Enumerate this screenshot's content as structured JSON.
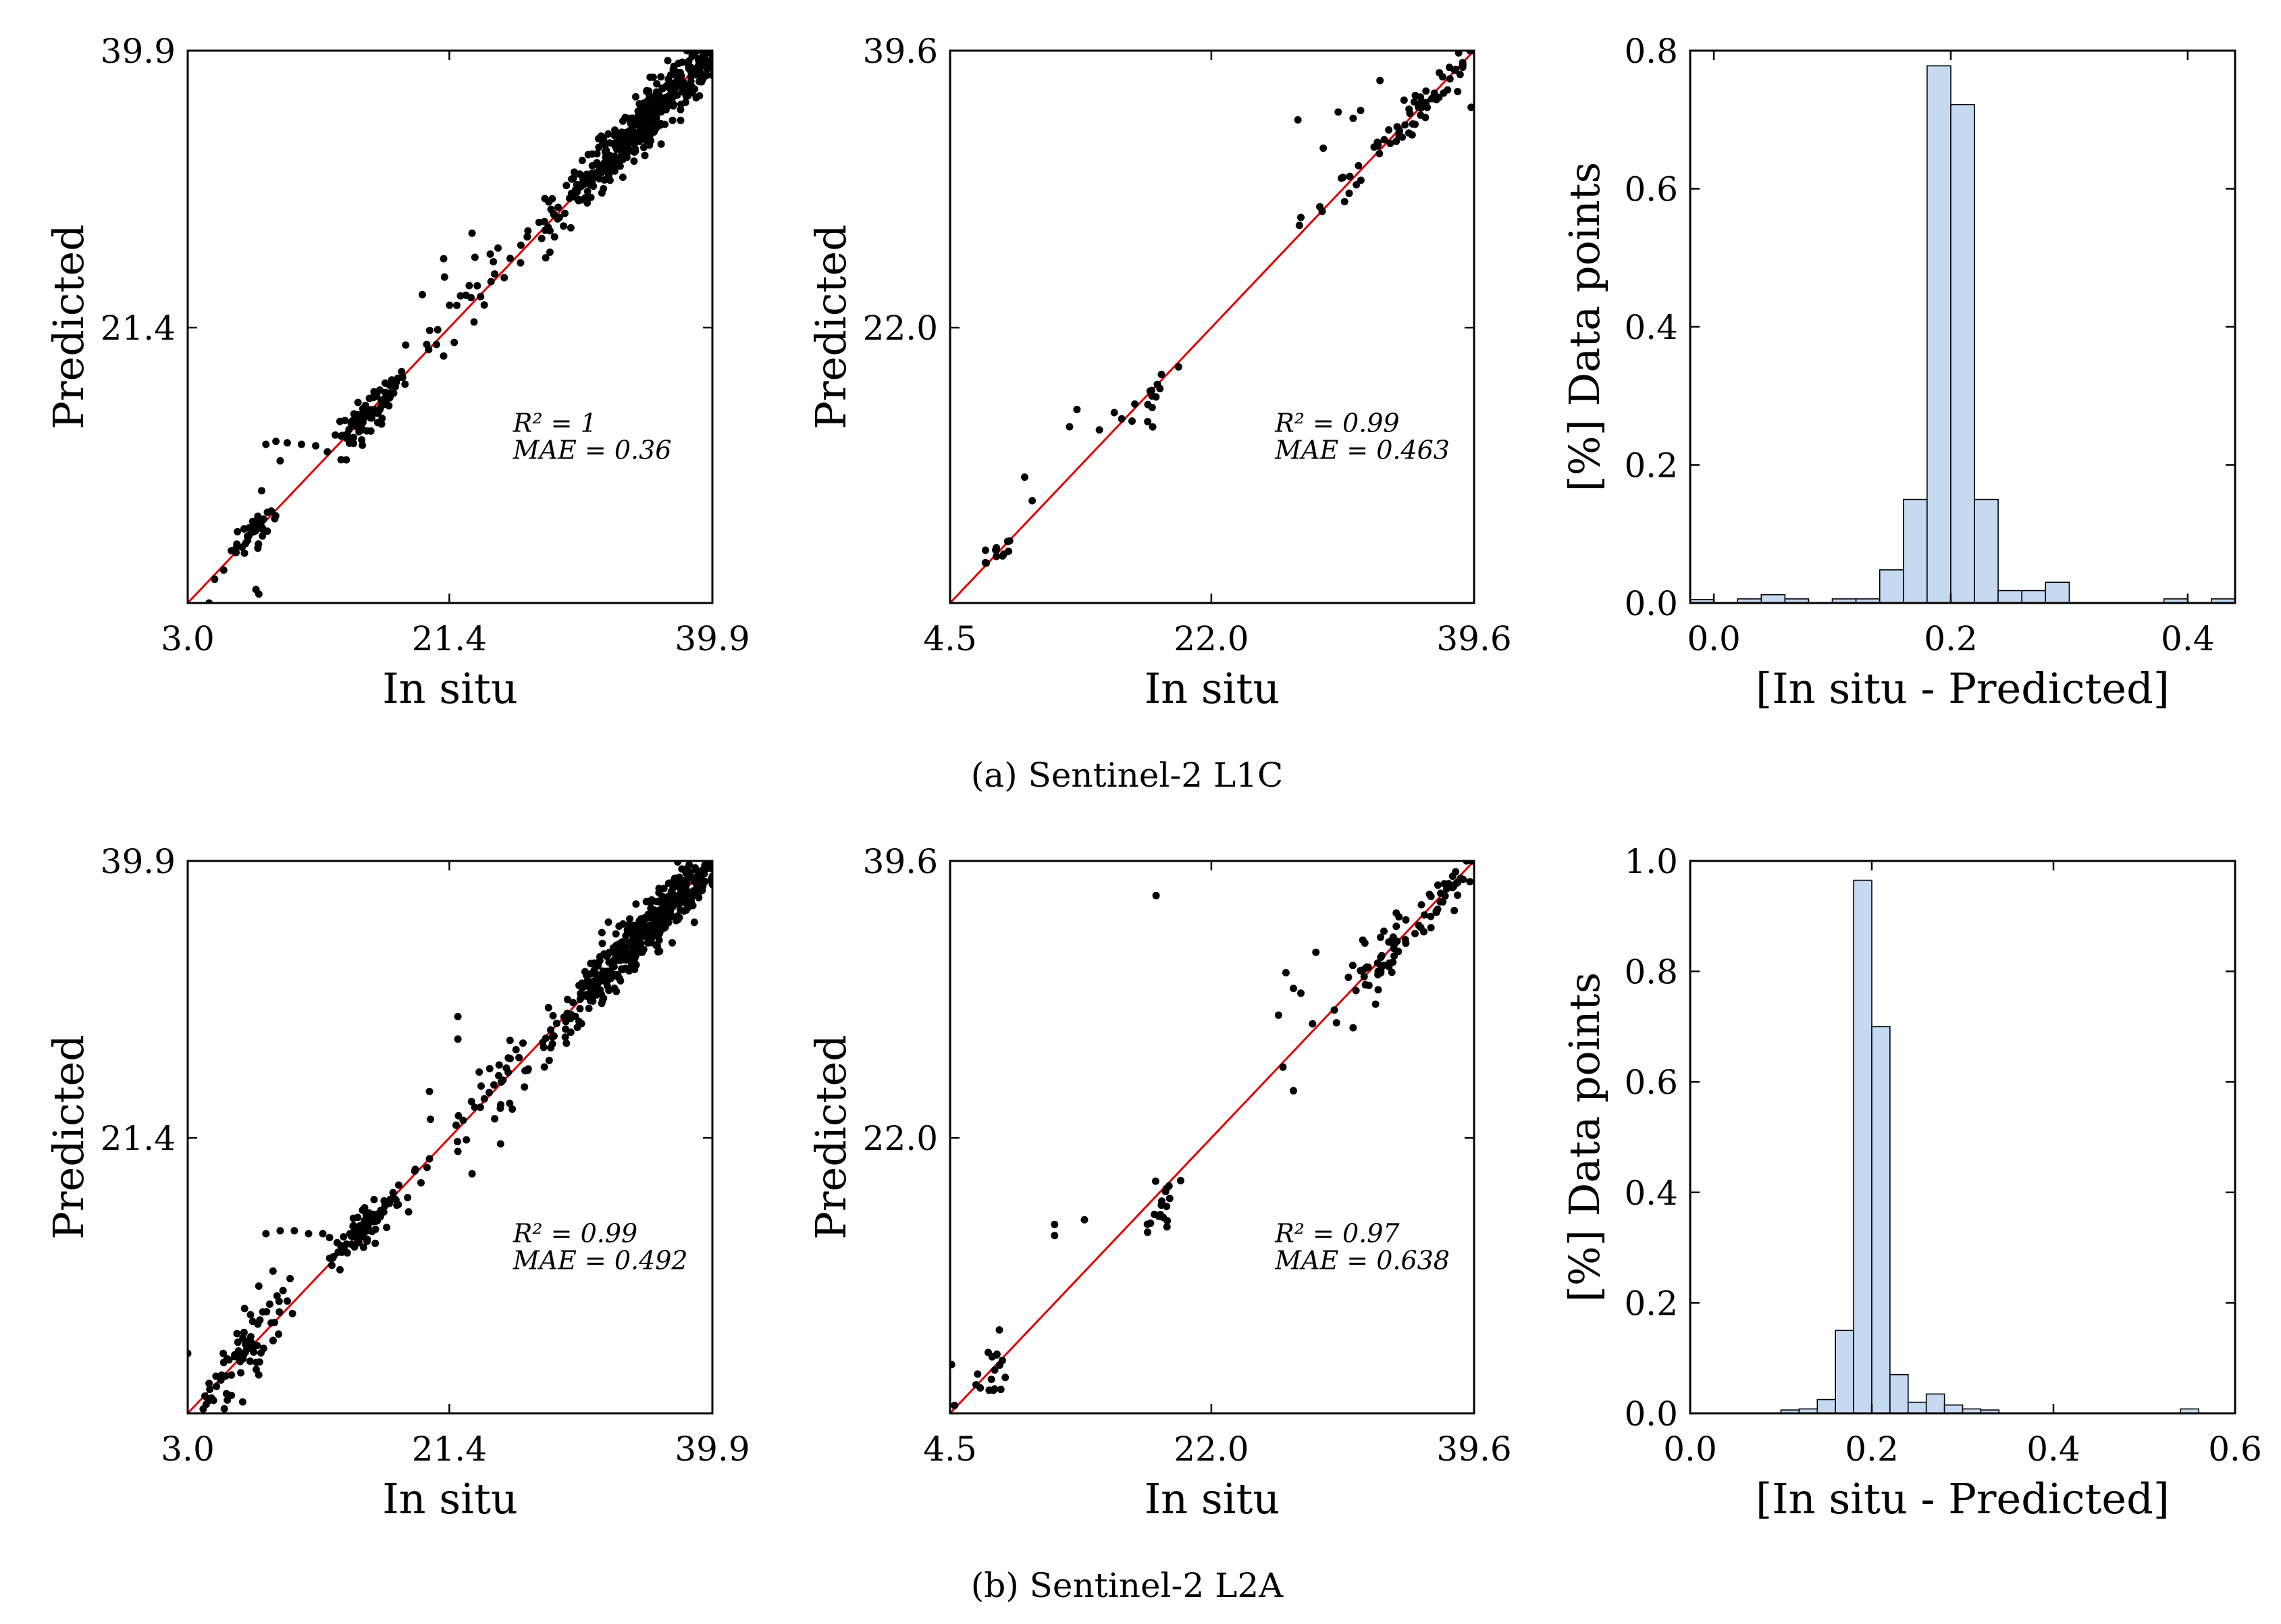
{
  "chart_data": [
    {
      "id": "a1",
      "type": "scatter",
      "xlabel": "In situ",
      "ylabel": "Predicted",
      "xlim": [
        3.0,
        39.9
      ],
      "ylim": [
        3.0,
        39.9
      ],
      "xticks": [
        "3.0",
        "21.4",
        "39.9"
      ],
      "yticks": [
        "21.4",
        "39.9"
      ],
      "ytick_values": [
        21.4,
        39.9
      ],
      "xtick_values": [
        3.0,
        21.4,
        39.9
      ],
      "r2_text": "R² = 1",
      "mae_text": "MAE = 0.36",
      "identity_line": true,
      "line_color": "#e00000",
      "clusters": [
        {
          "cx": 35.5,
          "cy": 35.5,
          "spread": 3.2,
          "n": 420,
          "noise": 0.8
        },
        {
          "cx": 15.5,
          "cy": 15.5,
          "spread": 1.2,
          "n": 90,
          "noise": 0.6
        },
        {
          "cx": 7.5,
          "cy": 7.5,
          "spread": 0.8,
          "n": 45,
          "noise": 0.5
        },
        {
          "cx": 25.0,
          "cy": 25.0,
          "spread": 3.5,
          "n": 45,
          "noise": 1.0
        }
      ],
      "points": [
        [
          8.5,
          13.6
        ],
        [
          9.2,
          13.8
        ],
        [
          10.0,
          13.7
        ],
        [
          11.0,
          13.6
        ],
        [
          12.0,
          13.5
        ],
        [
          8.2,
          10.5
        ],
        [
          9.5,
          12.5
        ],
        [
          19.5,
          23.6
        ],
        [
          21.0,
          26.0
        ],
        [
          22.8,
          24.2
        ],
        [
          23.0,
          27.7
        ],
        [
          24.5,
          25.8
        ],
        [
          8.0,
          3.6
        ],
        [
          7.8,
          3.9
        ],
        [
          4.5,
          3.0
        ],
        [
          21.0,
          19.5
        ]
      ]
    },
    {
      "id": "a2",
      "type": "scatter",
      "xlabel": "In situ",
      "ylabel": "Predicted",
      "xlim": [
        4.5,
        39.6
      ],
      "ylim": [
        4.5,
        39.6
      ],
      "xticks": [
        "4.5",
        "22.0",
        "39.6"
      ],
      "yticks": [
        "22.0",
        "39.6"
      ],
      "xtick_values": [
        4.5,
        22.0,
        39.6
      ],
      "ytick_values": [
        22.0,
        39.6
      ],
      "r2_text": "R² = 0.99",
      "mae_text": "MAE = 0.463",
      "identity_line": true,
      "line_color": "#e00000",
      "clusters": [
        {
          "cx": 35.5,
          "cy": 35.5,
          "spread": 2.6,
          "n": 70,
          "noise": 0.6
        },
        {
          "cx": 18.5,
          "cy": 18.2,
          "spread": 0.7,
          "n": 14,
          "noise": 0.5
        },
        {
          "cx": 7.5,
          "cy": 7.6,
          "spread": 0.6,
          "n": 12,
          "noise": 0.4
        }
      ],
      "points": [
        [
          27.8,
          35.2
        ],
        [
          29.5,
          33.4
        ],
        [
          30.5,
          35.7
        ],
        [
          31.5,
          35.3
        ],
        [
          32.0,
          35.8
        ],
        [
          28.0,
          29.0
        ],
        [
          27.9,
          28.5
        ],
        [
          12.5,
          15.7
        ],
        [
          13.0,
          16.8
        ],
        [
          14.5,
          15.5
        ],
        [
          15.5,
          16.6
        ],
        [
          16.0,
          16.2
        ],
        [
          9.5,
          12.5
        ],
        [
          10.0,
          11.0
        ],
        [
          38.5,
          37.0
        ],
        [
          39.4,
          36.0
        ],
        [
          33.3,
          37.7
        ]
      ]
    },
    {
      "id": "a3",
      "type": "bar",
      "xlabel": "[In situ - Predicted]",
      "ylabel": "[%] Data points",
      "xlim": [
        -0.02,
        0.44
      ],
      "ylim": [
        0,
        0.8
      ],
      "xticks": [
        "0.0",
        "0.2",
        "0.4"
      ],
      "xtick_values": [
        0.0,
        0.2,
        0.4
      ],
      "yticks": [
        "0.0",
        "0.2",
        "0.4",
        "0.6",
        "0.8"
      ],
      "ytick_values": [
        0.0,
        0.2,
        0.4,
        0.6,
        0.8
      ],
      "bin_width": 0.02,
      "bar_color": "#c5daf0",
      "bins": [
        -0.02,
        0.0,
        0.02,
        0.04,
        0.06,
        0.08,
        0.1,
        0.12,
        0.14,
        0.16,
        0.18,
        0.2,
        0.22,
        0.24,
        0.26,
        0.28,
        0.3,
        0.32,
        0.34,
        0.36,
        0.38,
        0.4,
        0.42
      ],
      "values": [
        0.005,
        0.0,
        0.006,
        0.012,
        0.006,
        0.0,
        0.006,
        0.006,
        0.048,
        0.15,
        0.778,
        0.722,
        0.15,
        0.018,
        0.018,
        0.03,
        0.0,
        0.0,
        0.0,
        0.0,
        0.006,
        0.0,
        0.006
      ]
    },
    {
      "id": "b1",
      "type": "scatter",
      "xlabel": "In situ",
      "ylabel": "Predicted",
      "xlim": [
        3.0,
        39.9
      ],
      "ylim": [
        3.0,
        39.9
      ],
      "xticks": [
        "3.0",
        "21.4",
        "39.9"
      ],
      "yticks": [
        "21.4",
        "39.9"
      ],
      "xtick_values": [
        3.0,
        21.4,
        39.9
      ],
      "ytick_values": [
        21.4,
        39.9
      ],
      "r2_text": "R² = 0.99",
      "mae_text": "MAE = 0.492",
      "identity_line": true,
      "line_color": "#e00000",
      "clusters": [
        {
          "cx": 35.5,
          "cy": 35.5,
          "spread": 3.2,
          "n": 450,
          "noise": 0.9
        },
        {
          "cx": 15.5,
          "cy": 15.5,
          "spread": 1.3,
          "n": 80,
          "noise": 0.6
        },
        {
          "cx": 7.0,
          "cy": 7.0,
          "spread": 1.5,
          "n": 70,
          "noise": 1.0
        },
        {
          "cx": 25.0,
          "cy": 25.0,
          "spread": 3.5,
          "n": 50,
          "noise": 1.2
        }
      ],
      "points": [
        [
          8.5,
          15.0
        ],
        [
          9.5,
          15.2
        ],
        [
          10.5,
          15.2
        ],
        [
          11.5,
          15.0
        ],
        [
          12.5,
          15.0
        ],
        [
          9.0,
          12.5
        ],
        [
          10.0,
          10.5
        ],
        [
          10.2,
          12.0
        ],
        [
          9.7,
          11.2
        ],
        [
          22.0,
          28.0
        ],
        [
          22.0,
          29.5
        ],
        [
          20.0,
          24.5
        ],
        [
          23.5,
          25.8
        ],
        [
          23.0,
          19.0
        ],
        [
          25.0,
          21.0
        ],
        [
          22.0,
          20.5
        ],
        [
          20.0,
          20.0
        ],
        [
          3.0,
          7.0
        ],
        [
          4.5,
          5.0
        ],
        [
          5.5,
          7.0
        ],
        [
          7.0,
          10.0
        ],
        [
          8.0,
          11.5
        ]
      ]
    },
    {
      "id": "b2",
      "type": "scatter",
      "xlabel": "In situ",
      "ylabel": "Predicted",
      "xlim": [
        4.5,
        39.6
      ],
      "ylim": [
        4.5,
        39.6
      ],
      "xticks": [
        "4.5",
        "22.0",
        "39.6"
      ],
      "yticks": [
        "22.0",
        "39.6"
      ],
      "xtick_values": [
        4.5,
        22.0,
        39.6
      ],
      "ytick_values": [
        22.0,
        39.6
      ],
      "r2_text": "R² = 0.97",
      "mae_text": "MAE = 0.638",
      "identity_line": true,
      "line_color": "#e00000",
      "clusters": [
        {
          "cx": 35.5,
          "cy": 35.5,
          "spread": 2.6,
          "n": 85,
          "noise": 0.7
        },
        {
          "cx": 18.6,
          "cy": 17.3,
          "spread": 0.5,
          "n": 18,
          "noise": 0.6
        },
        {
          "cx": 7.4,
          "cy": 7.2,
          "spread": 0.5,
          "n": 16,
          "noise": 0.6
        }
      ],
      "points": [
        [
          18.3,
          37.4
        ],
        [
          27.0,
          32.5
        ],
        [
          27.5,
          31.5
        ],
        [
          28.0,
          31.2
        ],
        [
          26.5,
          29.8
        ],
        [
          31.5,
          29.0
        ],
        [
          33.0,
          30.5
        ],
        [
          29.0,
          33.8
        ],
        [
          26.8,
          26.5
        ],
        [
          27.5,
          25.0
        ],
        [
          11.5,
          16.5
        ],
        [
          11.5,
          15.8
        ],
        [
          13.5,
          16.8
        ],
        [
          7.8,
          9.8
        ],
        [
          4.8,
          5.0
        ],
        [
          4.6,
          7.6
        ]
      ]
    },
    {
      "id": "b3",
      "type": "bar",
      "xlabel": "[In situ - Predicted]",
      "ylabel": "[%] Data points",
      "xlim": [
        0.0,
        0.6
      ],
      "ylim": [
        0,
        1.0
      ],
      "xticks": [
        "0.0",
        "0.2",
        "0.4",
        "0.6"
      ],
      "xtick_values": [
        0.0,
        0.2,
        0.4,
        0.6
      ],
      "yticks": [
        "0.0",
        "0.2",
        "0.4",
        "0.6",
        "0.8",
        "1.0"
      ],
      "ytick_values": [
        0.0,
        0.2,
        0.4,
        0.6,
        0.8,
        1.0
      ],
      "bin_width": 0.02,
      "bar_color": "#c5daf0",
      "bins": [
        0.1,
        0.12,
        0.14,
        0.16,
        0.18,
        0.2,
        0.22,
        0.24,
        0.26,
        0.28,
        0.3,
        0.32,
        0.54
      ],
      "values": [
        0.006,
        0.008,
        0.025,
        0.15,
        0.965,
        0.7,
        0.07,
        0.02,
        0.035,
        0.015,
        0.008,
        0.006,
        0.008
      ]
    }
  ],
  "captions": {
    "a": "(a) Sentinel-2 L1C",
    "b": "(b) Sentinel-2 L2A"
  }
}
